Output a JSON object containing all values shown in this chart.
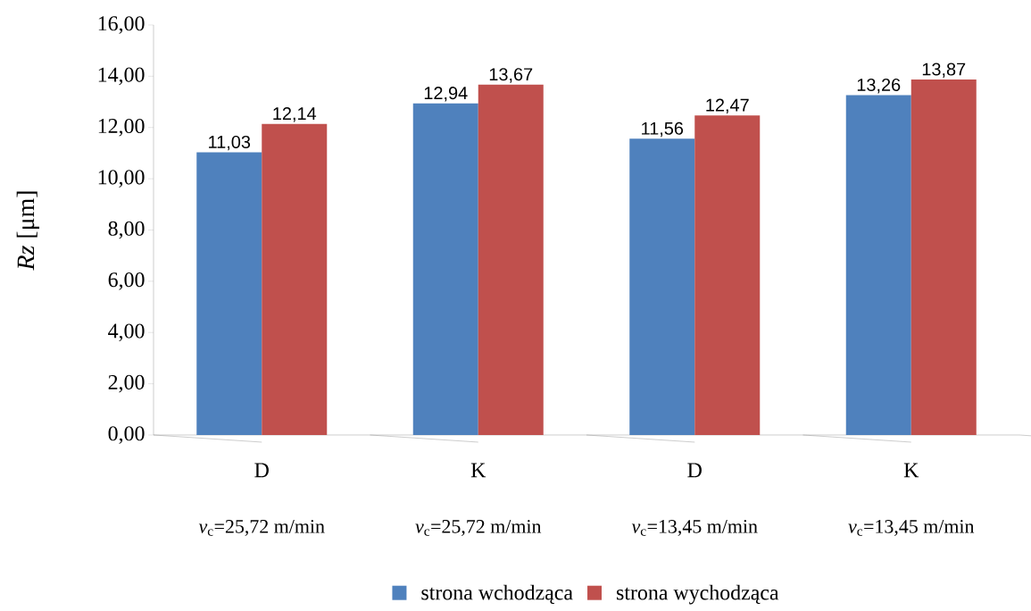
{
  "chart_data": {
    "type": "bar",
    "ylabel": "*Rz* [μm]",
    "categories": [
      "D",
      "K",
      "D",
      "K"
    ],
    "annotations": [
      "*v*$_{c}$=25,72 m/min",
      "*v*$_{c}$=25,72 m/min",
      "*v*$_{c}$=13,45 m/min",
      "*v*$_{c}$=13,45 m/min"
    ],
    "series": [
      {
        "name": "strona wchodząca",
        "color": "#4f81bd",
        "values": [
          11.03,
          12.94,
          11.56,
          13.26
        ],
        "value_labels": [
          "11,03",
          "12,94",
          "11,56",
          "13,26"
        ]
      },
      {
        "name": "strona wychodząca",
        "color": "#c0504d",
        "values": [
          12.14,
          13.67,
          12.47,
          13.87
        ],
        "value_labels": [
          "12,14",
          "13,67",
          "12,47",
          "13,87"
        ]
      }
    ],
    "ylim": [
      0,
      16
    ],
    "yticks": [
      {
        "value": 0,
        "label": "0,00"
      },
      {
        "value": 2,
        "label": "2,00"
      },
      {
        "value": 4,
        "label": "4,00"
      },
      {
        "value": 6,
        "label": "6,00"
      },
      {
        "value": 8,
        "label": "8,00"
      },
      {
        "value": 10,
        "label": "10,00"
      },
      {
        "value": 12,
        "label": "12,00"
      },
      {
        "value": 14,
        "label": "14,00"
      },
      {
        "value": 16,
        "label": "16,00"
      }
    ],
    "legend": "bottom"
  }
}
